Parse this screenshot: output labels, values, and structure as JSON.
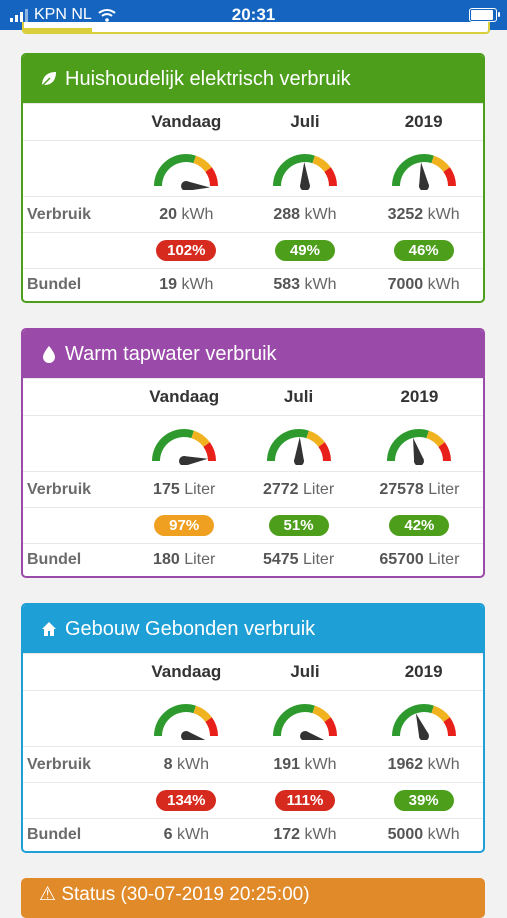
{
  "status_bar": {
    "carrier": "KPN NL",
    "time": "20:31"
  },
  "colors": {
    "green": "#4c9e1b",
    "purple": "#9a4aa8",
    "blue": "#1e9fd6",
    "orange": "#e08a2a",
    "red_badge": "#d62a1e",
    "orange_badge": "#f0a020",
    "green_badge": "#4c9e1b"
  },
  "panels": [
    {
      "title": "Huishoudelijk elektrisch verbruik",
      "icon": "leaf-icon",
      "columns": [
        "Vandaag",
        "Juli",
        "2019"
      ],
      "row_labels": {
        "usage": "Verbruik",
        "bundle": "Bundel"
      },
      "cells": [
        {
          "usage": "20",
          "usage_unit": "kWh",
          "pct": "102%",
          "pct_level": "red",
          "bundle": "19",
          "bundle_unit": "kWh",
          "needle": 1.02
        },
        {
          "usage": "288",
          "usage_unit": "kWh",
          "pct": "49%",
          "pct_level": "green",
          "bundle": "583",
          "bundle_unit": "kWh",
          "needle": 0.49
        },
        {
          "usage": "3252",
          "usage_unit": "kWh",
          "pct": "46%",
          "pct_level": "green",
          "bundle": "7000",
          "bundle_unit": "kWh",
          "needle": 0.46
        }
      ]
    },
    {
      "title": "Warm tapwater verbruik",
      "icon": "water-drop-icon",
      "columns": [
        "Vandaag",
        "Juli",
        "2019"
      ],
      "row_labels": {
        "usage": "Verbruik",
        "bundle": "Bundel"
      },
      "cells": [
        {
          "usage": "175",
          "usage_unit": "Liter",
          "pct": "97%",
          "pct_level": "orange",
          "bundle": "180",
          "bundle_unit": "Liter",
          "needle": 0.97
        },
        {
          "usage": "2772",
          "usage_unit": "Liter",
          "pct": "51%",
          "pct_level": "green",
          "bundle": "5475",
          "bundle_unit": "Liter",
          "needle": 0.51
        },
        {
          "usage": "27578",
          "usage_unit": "Liter",
          "pct": "42%",
          "pct_level": "green",
          "bundle": "65700",
          "bundle_unit": "Liter",
          "needle": 0.42
        }
      ]
    },
    {
      "title": "Gebouw Gebonden verbruik",
      "icon": "home-icon",
      "columns": [
        "Vandaag",
        "Juli",
        "2019"
      ],
      "row_labels": {
        "usage": "Verbruik",
        "bundle": "Bundel"
      },
      "cells": [
        {
          "usage": "8",
          "usage_unit": "kWh",
          "pct": "134%",
          "pct_level": "red",
          "bundle": "6",
          "bundle_unit": "kWh",
          "needle": 1.34
        },
        {
          "usage": "191",
          "usage_unit": "kWh",
          "pct": "111%",
          "pct_level": "red",
          "bundle": "172",
          "bundle_unit": "kWh",
          "needle": 1.11
        },
        {
          "usage": "1962",
          "usage_unit": "kWh",
          "pct": "39%",
          "pct_level": "green",
          "bundle": "5000",
          "bundle_unit": "kWh",
          "needle": 0.39
        }
      ]
    }
  ],
  "bottom_panel": {
    "title": "Status (30-07-2019 20:25:00)",
    "icon": "warning-icon"
  }
}
